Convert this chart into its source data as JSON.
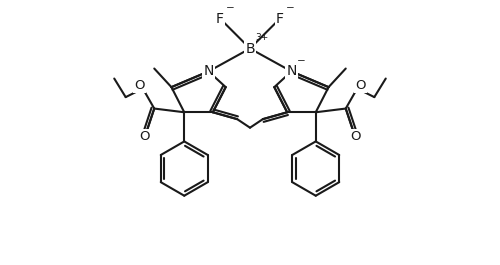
{
  "bg": "#ffffff",
  "lc": "#1a1a1a",
  "lw": 1.5,
  "fw": 5.0,
  "fh": 2.65,
  "dpi": 100,
  "xlim": [
    -5.2,
    5.2
  ],
  "ylim": [
    -4.0,
    5.2
  ]
}
